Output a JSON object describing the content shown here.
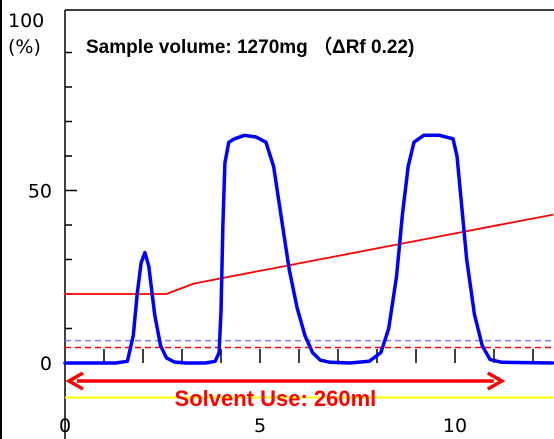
{
  "chart_data": {
    "type": "line",
    "title": "Sample volume: 1270mg （ΔRf 0.22)",
    "y_unit_top": "100",
    "y_unit_bottom": "(%)",
    "xlim": [
      0,
      12
    ],
    "ylim": [
      0,
      100
    ],
    "x_ticks": [
      {
        "value": 0,
        "label": "0"
      },
      {
        "value": 5,
        "label": "5"
      },
      {
        "value": 10,
        "label": "10"
      }
    ],
    "y_ticks": [
      {
        "value": 0,
        "label": "0"
      },
      {
        "value": 50,
        "label": "50"
      }
    ],
    "series": [
      {
        "key": "detector",
        "color": "#0000ff",
        "points": [
          [
            0,
            0
          ],
          [
            1.3,
            0
          ],
          [
            1.6,
            0.5
          ],
          [
            1.75,
            8
          ],
          [
            1.85,
            20
          ],
          [
            1.95,
            29
          ],
          [
            2.05,
            32
          ],
          [
            2.15,
            28
          ],
          [
            2.3,
            14
          ],
          [
            2.45,
            5
          ],
          [
            2.6,
            1.5
          ],
          [
            2.8,
            0.3
          ],
          [
            3.1,
            0
          ],
          [
            3.6,
            0
          ],
          [
            3.85,
            0.5
          ],
          [
            3.95,
            3
          ],
          [
            4.0,
            15
          ],
          [
            4.05,
            40
          ],
          [
            4.1,
            58
          ],
          [
            4.2,
            64
          ],
          [
            4.35,
            65
          ],
          [
            4.6,
            66
          ],
          [
            4.9,
            65.5
          ],
          [
            5.15,
            64
          ],
          [
            5.35,
            57
          ],
          [
            5.55,
            42
          ],
          [
            5.75,
            27
          ],
          [
            5.95,
            16
          ],
          [
            6.15,
            8
          ],
          [
            6.35,
            3
          ],
          [
            6.55,
            0.8
          ],
          [
            6.8,
            0.2
          ],
          [
            7.3,
            0
          ],
          [
            7.8,
            0.5
          ],
          [
            8.1,
            3
          ],
          [
            8.3,
            10
          ],
          [
            8.5,
            25
          ],
          [
            8.65,
            43
          ],
          [
            8.8,
            57
          ],
          [
            8.95,
            64
          ],
          [
            9.2,
            66
          ],
          [
            9.6,
            66
          ],
          [
            9.95,
            65
          ],
          [
            10.05,
            60
          ],
          [
            10.15,
            48
          ],
          [
            10.3,
            30
          ],
          [
            10.5,
            14
          ],
          [
            10.7,
            5
          ],
          [
            10.9,
            1
          ],
          [
            11.2,
            0.2
          ],
          [
            12.5,
            0
          ]
        ]
      },
      {
        "key": "gradient",
        "color": "#ff0000",
        "points": [
          [
            0,
            20
          ],
          [
            2.6,
            20
          ],
          [
            3.3,
            23
          ],
          [
            12.5,
            43
          ]
        ]
      }
    ],
    "reference_lines": [
      {
        "key": "blue-dashed",
        "y": 6.5,
        "color": "#8080ff",
        "dash": true
      },
      {
        "key": "red-dashed",
        "y": 4.5,
        "color": "#ff0000",
        "dash": true
      },
      {
        "key": "yellow",
        "y": -10,
        "color": "#ffff00",
        "dash": false
      }
    ],
    "annotation": {
      "text": "Solvent Use: 260ml",
      "x_start": 0,
      "x_end": 11.2,
      "color": "#ff0000"
    },
    "grid": false
  }
}
